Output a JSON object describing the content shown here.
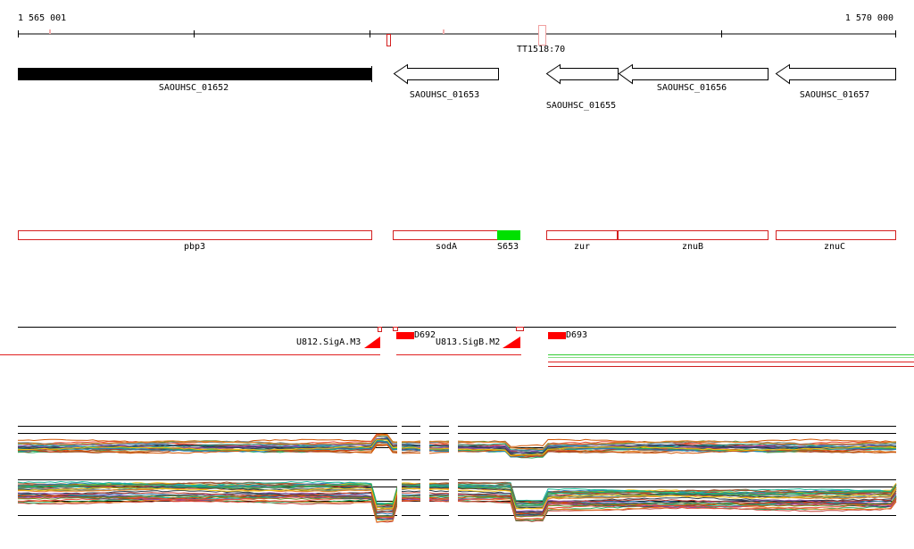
{
  "ruler": {
    "start_label": "1 565 001",
    "end_label": "1 570 000"
  },
  "terminator": {
    "label": "TT1518:70"
  },
  "orfs": [
    {
      "label": "SAOUHSC_01652"
    },
    {
      "label": "SAOUHSC_01653"
    },
    {
      "label": "SAOUHSC_01655"
    },
    {
      "label": "SAOUHSC_01656"
    },
    {
      "label": "SAOUHSC_01657"
    }
  ],
  "genes": [
    {
      "label": "pbp3"
    },
    {
      "label": "sodA"
    },
    {
      "label": "S653"
    },
    {
      "label": "zur"
    },
    {
      "label": "znuB"
    },
    {
      "label": "znuC"
    }
  ],
  "features": [
    {
      "label": "U812.SigA.M3"
    },
    {
      "label": "D692"
    },
    {
      "label": "U813.SigB.M2"
    },
    {
      "label": "D693"
    }
  ],
  "colors": {
    "axis": "#000000",
    "gene_outline": "#d42020",
    "srna_fill": "#00e000",
    "feature_red": "#ff0000",
    "orf_fill_selected": "#000000"
  }
}
